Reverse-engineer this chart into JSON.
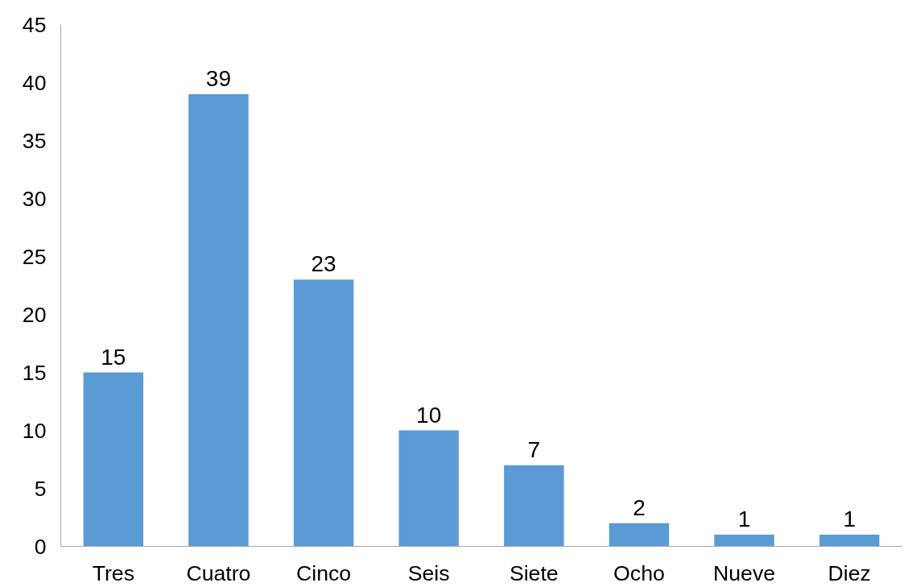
{
  "chart_data": {
    "type": "bar",
    "categories": [
      "Tres",
      "Cuatro",
      "Cinco",
      "Seis",
      "Siete",
      "Ocho",
      "Nueve",
      "Diez"
    ],
    "values": [
      15,
      39,
      23,
      10,
      7,
      2,
      1,
      1
    ],
    "color": "#5b9bd5",
    "ylim": [
      0,
      45
    ],
    "yticks": [
      0,
      5,
      10,
      15,
      20,
      25,
      30,
      35,
      40,
      45
    ],
    "grid": false,
    "data_labels": true
  }
}
